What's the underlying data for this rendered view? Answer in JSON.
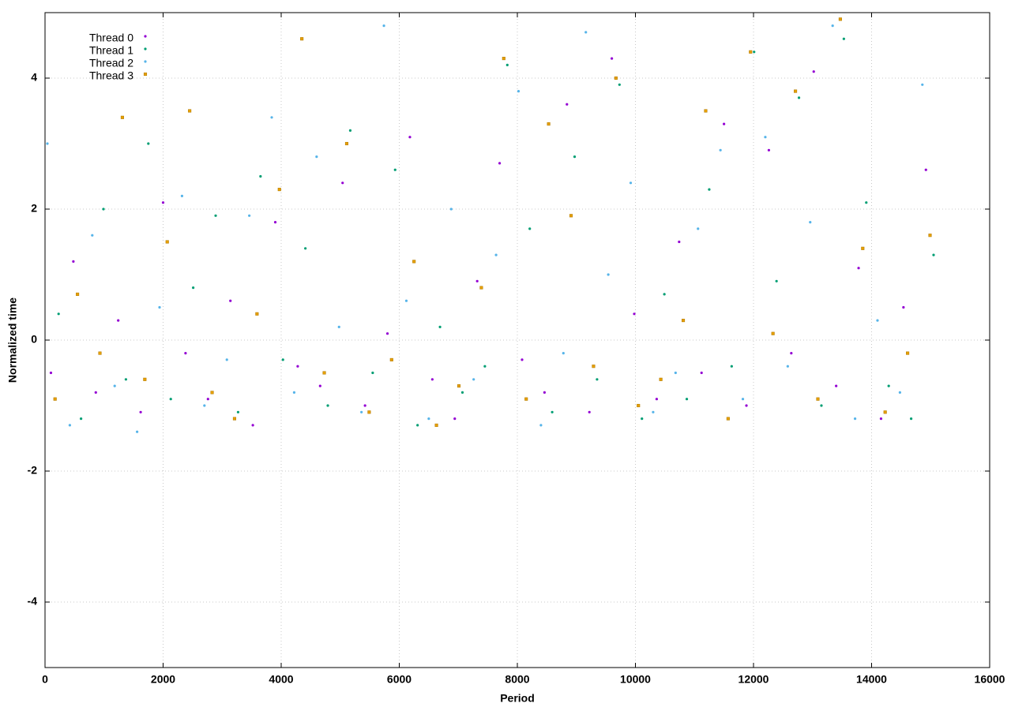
{
  "chart_data": {
    "type": "scatter",
    "x_label": "Period",
    "y_label": "Normalized time",
    "xlim": [
      0,
      16000
    ],
    "xticks": [
      0,
      2000,
      4000,
      6000,
      8000,
      10000,
      12000,
      14000,
      16000
    ],
    "ylim": [
      -5,
      5
    ],
    "yticks": [
      -4,
      -2,
      0,
      2,
      4
    ],
    "grid": true,
    "legend": "upper left",
    "series": [
      {
        "name": "Thread 0",
        "color": "#9400d3",
        "marker": "circle",
        "x": [
          100,
          480,
          860,
          1240,
          1620,
          2000,
          2380,
          2760,
          3140,
          3520,
          3900,
          4280,
          4660,
          5040,
          5420,
          5800,
          6180,
          6560,
          6940,
          7320,
          7700,
          8080,
          8460,
          8840,
          9220,
          9600,
          9980,
          10360,
          10740,
          11120,
          11500,
          11880,
          12260,
          12640,
          13020,
          13400,
          13780,
          14160,
          14540,
          14920
        ],
        "values": [
          -0.5,
          1.2,
          -0.8,
          0.3,
          -1.1,
          2.1,
          -0.2,
          -0.9,
          0.6,
          -1.3,
          1.8,
          -0.4,
          -0.7,
          2.4,
          -1.0,
          0.1,
          3.1,
          -0.6,
          -1.2,
          0.9,
          2.7,
          -0.3,
          -0.8,
          3.6,
          -1.1,
          4.3,
          0.4,
          -0.9,
          1.5,
          -0.5,
          3.3,
          -1.0,
          2.9,
          -0.2,
          4.1,
          -0.7,
          1.1,
          -1.2,
          0.5,
          2.6
        ]
      },
      {
        "name": "Thread 1",
        "color": "#009e73",
        "marker": "circle",
        "x": [
          230,
          610,
          990,
          1370,
          1750,
          2130,
          2510,
          2890,
          3270,
          3650,
          4030,
          4410,
          4790,
          5170,
          5550,
          5930,
          6310,
          6690,
          7070,
          7450,
          7830,
          8210,
          8590,
          8970,
          9350,
          9730,
          10110,
          10490,
          10870,
          11250,
          11630,
          12010,
          12390,
          12770,
          13150,
          13530,
          13910,
          14290,
          14670,
          15050
        ],
        "values": [
          0.4,
          -1.2,
          2.0,
          -0.6,
          3.0,
          -0.9,
          0.8,
          1.9,
          -1.1,
          2.5,
          -0.3,
          1.4,
          -1.0,
          3.2,
          -0.5,
          2.6,
          -1.3,
          0.2,
          -0.8,
          -0.4,
          4.2,
          1.7,
          -1.1,
          2.8,
          -0.6,
          3.9,
          -1.2,
          0.7,
          -0.9,
          2.3,
          -0.4,
          4.4,
          0.9,
          3.7,
          -1.0,
          4.6,
          2.1,
          -0.7,
          -1.2,
          1.3
        ]
      },
      {
        "name": "Thread 2",
        "color": "#56b4e9",
        "marker": "circle",
        "x": [
          40,
          420,
          800,
          1180,
          1560,
          1940,
          2320,
          2700,
          3080,
          3460,
          3840,
          4220,
          4600,
          4980,
          5360,
          5740,
          6120,
          6500,
          6880,
          7260,
          7640,
          8020,
          8400,
          8780,
          9160,
          9540,
          9920,
          10300,
          10680,
          11060,
          11440,
          11820,
          12200,
          12580,
          12960,
          13340,
          13720,
          14100,
          14480,
          14860
        ],
        "values": [
          3.0,
          -1.3,
          1.6,
          -0.7,
          -1.4,
          0.5,
          2.2,
          -1.0,
          -0.3,
          1.9,
          3.4,
          -0.8,
          2.8,
          0.2,
          -1.1,
          4.8,
          0.6,
          -1.2,
          2.0,
          -0.6,
          1.3,
          3.8,
          -1.3,
          -0.2,
          4.7,
          1.0,
          2.4,
          -1.1,
          -0.5,
          1.7,
          2.9,
          -0.9,
          3.1,
          -0.4,
          1.8,
          4.8,
          -1.2,
          0.3,
          -0.8,
          3.9
        ]
      },
      {
        "name": "Thread 3",
        "color": "#e69f00",
        "marker": "square",
        "x": [
          170,
          550,
          930,
          1310,
          1690,
          2070,
          2450,
          2830,
          3210,
          3590,
          3970,
          4350,
          4730,
          5110,
          5490,
          5870,
          6250,
          6630,
          7010,
          7390,
          7770,
          8150,
          8530,
          8910,
          9290,
          9670,
          10050,
          10430,
          10810,
          11190,
          11570,
          11950,
          12330,
          12710,
          13090,
          13470,
          13850,
          14230,
          14610,
          14990
        ],
        "values": [
          -0.9,
          0.7,
          -0.2,
          3.4,
          -0.6,
          1.5,
          3.5,
          -0.8,
          -1.2,
          0.4,
          2.3,
          4.6,
          -0.5,
          3.0,
          -1.1,
          -0.3,
          1.2,
          -1.3,
          -0.7,
          0.8,
          4.3,
          -0.9,
          3.3,
          1.9,
          -0.4,
          4.0,
          -1.0,
          -0.6,
          0.3,
          3.5,
          -1.2,
          4.4,
          0.1,
          3.8,
          -0.9,
          4.9,
          1.4,
          -1.1,
          -0.2,
          1.6
        ]
      }
    ]
  }
}
